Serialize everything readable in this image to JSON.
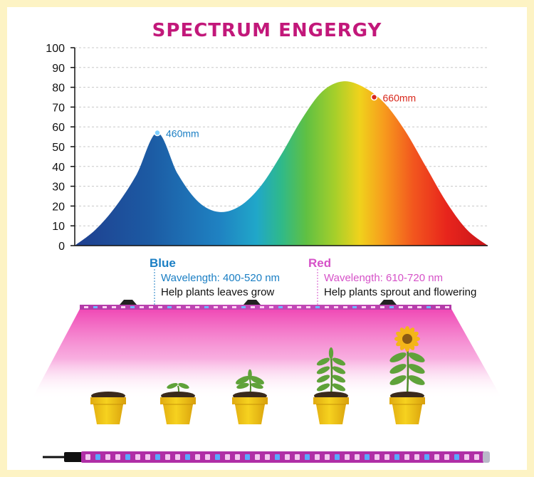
{
  "chart_data": {
    "type": "area",
    "title": "SPECTRUM  ENGERGY",
    "ylim": [
      0,
      100
    ],
    "yticks": [
      0,
      10,
      20,
      30,
      40,
      50,
      60,
      70,
      80,
      90,
      100
    ],
    "grid": true,
    "x": [
      380,
      400,
      420,
      440,
      460,
      480,
      500,
      520,
      540,
      560,
      580,
      600,
      620,
      640,
      660,
      680,
      700,
      720,
      740,
      760,
      780
    ],
    "values": [
      0,
      8,
      20,
      36,
      57,
      36,
      22,
      17,
      20,
      30,
      46,
      64,
      78,
      83,
      80,
      72,
      58,
      40,
      22,
      8,
      0
    ],
    "annotations": [
      {
        "label": "460mm",
        "x": 460,
        "y": 57,
        "color": "#1b7fc4"
      },
      {
        "label": "660mm",
        "x": 670,
        "y": 75,
        "color": "#d9281c"
      }
    ]
  },
  "info": {
    "blue": {
      "heading": "Blue",
      "wavelength": "Wavelength: 400-520 nm",
      "description": "Help plants leaves grow"
    },
    "red": {
      "heading": "Red",
      "wavelength": "Wavelength: 610-720 nm",
      "description": "Help plants sprout and flowering"
    }
  },
  "colors": {
    "title": "#c2187a",
    "blue": "#1b7fc4",
    "red": "#d652c8",
    "frame": "#fdf3c4",
    "pot": "#f2c816",
    "light_glow": "#f04fb8"
  },
  "scene": {
    "plants": [
      "soil-pot",
      "seedling",
      "small-sprout",
      "young-plant",
      "flowering-sunflower"
    ]
  }
}
